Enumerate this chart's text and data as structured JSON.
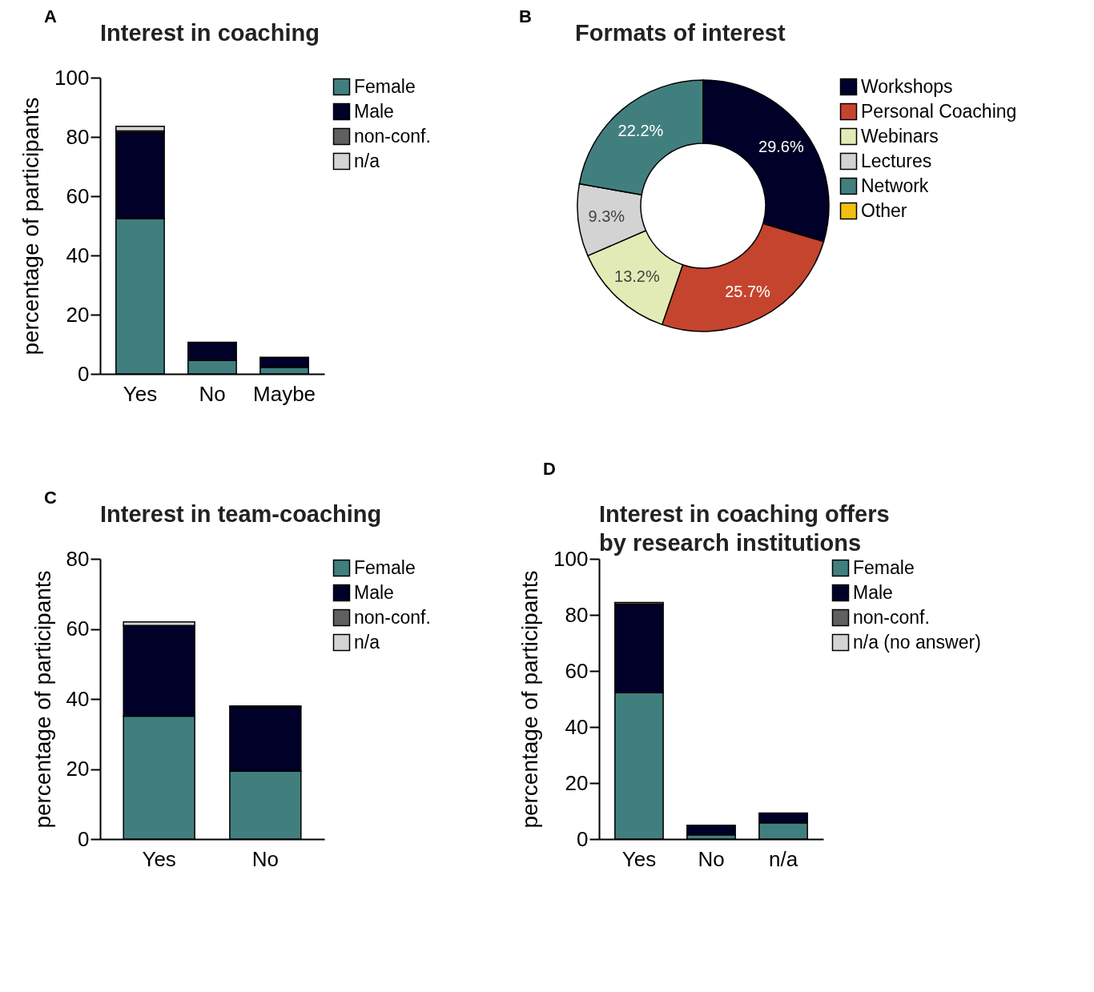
{
  "chart_data": [
    {
      "type": "bar",
      "title": "Interest in coaching",
      "ylabel": "percentage of participants",
      "annotations": [
        "A"
      ],
      "categories": [
        "Yes",
        "No",
        "Maybe"
      ],
      "stacked": true,
      "ylim": [
        0,
        100
      ],
      "yticks": [
        0,
        20,
        40,
        60,
        80,
        100
      ],
      "legend": "top right",
      "series": [
        {
          "name": "Female",
          "color": "#417f7e",
          "values": [
            52.4,
            4.5,
            2.2
          ]
        },
        {
          "name": "Male",
          "color": "#000028",
          "values": [
            29.1,
            6.2,
            3.4
          ]
        },
        {
          "name": "non-conf.",
          "color": "#606060",
          "values": [
            0.5,
            0,
            0
          ]
        },
        {
          "name": "n/a",
          "color": "#d4d4d4",
          "values": [
            1.6,
            0,
            0
          ]
        }
      ]
    },
    {
      "type": "donut",
      "title": "Formats of interest",
      "annotations": [
        "B"
      ],
      "legend": "right",
      "categories": [
        "Workshops",
        "Personal Coaching",
        "Webinars",
        "Lectures",
        "Network",
        "Other"
      ],
      "values": [
        29.6,
        25.7,
        13.2,
        9.3,
        22.2,
        0
      ],
      "colors": [
        "#000028",
        "#c5442e",
        "#e2ebb5",
        "#d3d3d3",
        "#417f7e",
        "#f1c00f"
      ],
      "value_labels": [
        "29.6%",
        "25.7%",
        "13.2%",
        "9.3%",
        "22.2%",
        null
      ]
    },
    {
      "type": "bar",
      "title": "Interest in team-coaching",
      "ylabel": "percentage of participants",
      "annotations": [
        "C"
      ],
      "categories": [
        "Yes",
        "No"
      ],
      "stacked": true,
      "ylim": [
        0,
        80
      ],
      "yticks": [
        0,
        20,
        40,
        60,
        80
      ],
      "legend": "top right",
      "series": [
        {
          "name": "Female",
          "color": "#417f7e",
          "values": [
            35.1,
            19.4
          ]
        },
        {
          "name": "Male",
          "color": "#000028",
          "values": [
            25.9,
            18.2
          ]
        },
        {
          "name": "non-conf.",
          "color": "#606060",
          "values": [
            0,
            0.4
          ]
        },
        {
          "name": "n/a",
          "color": "#d4d4d4",
          "values": [
            1.0,
            0
          ]
        }
      ]
    },
    {
      "type": "bar",
      "title": "Interest in coaching offers\nby research institutions",
      "ylabel": "percentage of participants",
      "annotations": [
        "D"
      ],
      "categories": [
        "Yes",
        "No",
        "n/a"
      ],
      "stacked": true,
      "ylim": [
        0,
        100
      ],
      "yticks": [
        0,
        20,
        40,
        60,
        80,
        100
      ],
      "legend": "top right",
      "series": [
        {
          "name": "Female",
          "color": "#417f7e",
          "values": [
            52.3,
            1.5,
            5.8
          ]
        },
        {
          "name": "Male",
          "color": "#000028",
          "values": [
            31.5,
            3.4,
            3.5
          ]
        },
        {
          "name": "non-conf.",
          "color": "#606060",
          "values": [
            0.6,
            0,
            0
          ]
        },
        {
          "name": "n/a (no answer)",
          "color": "#d4d4d4",
          "values": [
            0,
            0,
            0
          ]
        }
      ]
    }
  ]
}
